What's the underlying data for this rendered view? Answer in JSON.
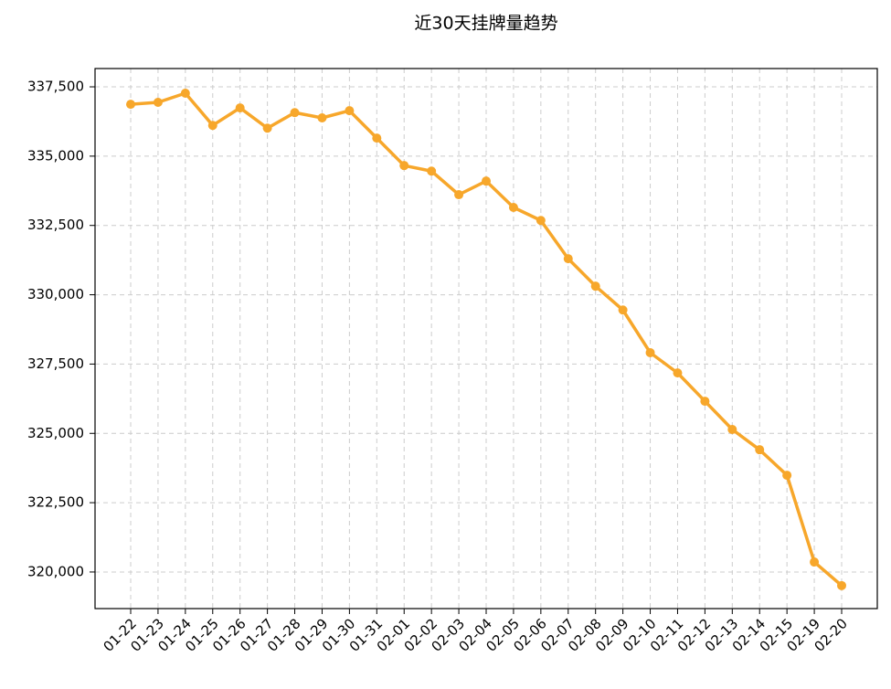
{
  "chart_data": {
    "type": "line",
    "title": "近30天挂牌量趋势",
    "categories": [
      "01-22",
      "01-23",
      "01-24",
      "01-25",
      "01-26",
      "01-27",
      "01-28",
      "01-29",
      "01-30",
      "01-31",
      "02-01",
      "02-02",
      "02-03",
      "02-04",
      "02-05",
      "02-06",
      "02-07",
      "02-08",
      "02-09",
      "02-10",
      "02-11",
      "02-12",
      "02-13",
      "02-14",
      "02-15",
      "02-19",
      "02-20"
    ],
    "series": [
      {
        "color": "#f7a72b",
        "values": [
          336870,
          336940,
          337270,
          336110,
          336740,
          336010,
          336570,
          336380,
          336640,
          335650,
          334660,
          334460,
          333610,
          334100,
          333150,
          332680,
          331300,
          330310,
          329450,
          327910,
          327180,
          326160,
          325140,
          324410,
          323490,
          320360,
          319510
        ]
      }
    ],
    "ylim": [
      318680,
      338160
    ],
    "yticks": [
      {
        "value": 320000,
        "label": "320,000"
      },
      {
        "value": 322500,
        "label": "322,500"
      },
      {
        "value": 325000,
        "label": "325,000"
      },
      {
        "value": 327500,
        "label": "327,500"
      },
      {
        "value": 330000,
        "label": "330,000"
      },
      {
        "value": 332500,
        "label": "332,500"
      },
      {
        "value": 335000,
        "label": "335,000"
      },
      {
        "value": 337500,
        "label": "337,500"
      }
    ],
    "grid": true
  }
}
